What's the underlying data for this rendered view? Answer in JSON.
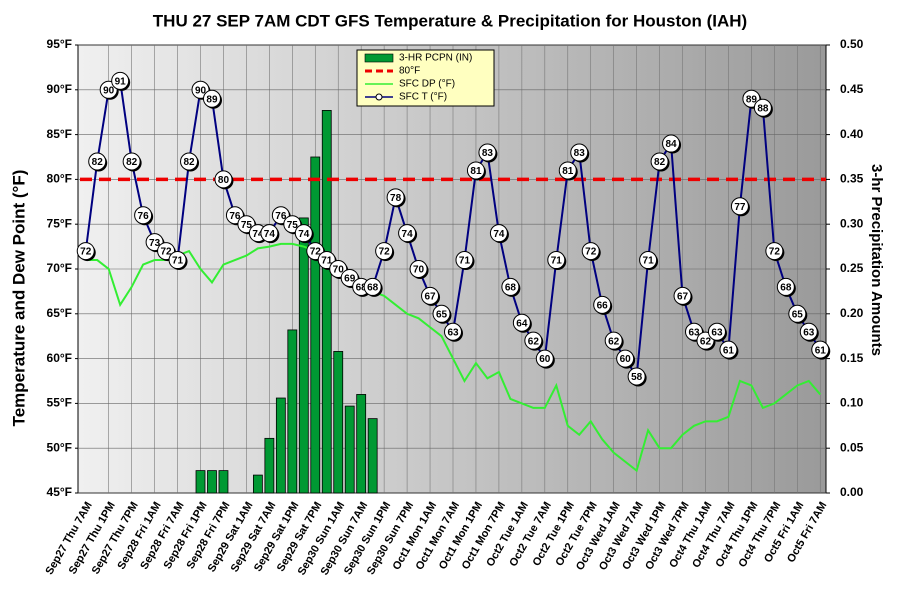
{
  "chart_data": {
    "type": "combo",
    "title": "THU 27 SEP 7AM CDT GFS Temperature & Precipitation for Houston (IAH)",
    "y_label": "Temperature and Dew Point (°F)",
    "y2_label": "3-hr Precipitation Amounts",
    "categories": [
      "Sep27 Thu 7AM",
      null,
      "Sep27 Thu 1PM",
      null,
      "Sep27 Thu 7PM",
      null,
      "Sep28 Fri 1AM",
      null,
      "Sep28 Fri 7AM",
      null,
      "Sep28 Fri 1PM",
      null,
      "Sep28 Fri 7PM",
      null,
      "Sep29 Sat 1AM",
      null,
      "Sep29 Sat 7AM",
      null,
      "Sep29 Sat 1PM",
      null,
      "Sep29 Sat 7PM",
      null,
      "Sep30 Sun 1AM",
      null,
      "Sep30 Sun 7AM",
      null,
      "Sep30 Sun 1PM",
      null,
      "Sep30 Sun 7PM",
      null,
      "Oct1 Mon 1AM",
      null,
      "Oct1 Mon 7AM",
      null,
      "Oct1 Mon 1PM",
      null,
      "Oct1 Mon 7PM",
      null,
      "Oct2 Tue 1AM",
      null,
      "Oct2 Tue 7AM",
      null,
      "Oct2 Tue 1PM",
      null,
      "Oct2 Tue 7PM",
      null,
      "Oct3 Wed 1AM",
      null,
      "Oct3 Wed 7AM",
      null,
      "Oct3 Wed 1PM",
      null,
      "Oct3 Wed 7PM",
      null,
      "Oct4 Thu 1AM",
      null,
      "Oct4 Thu 7AM",
      null,
      "Oct4 Thu 1PM",
      null,
      "Oct4 Thu 7PM",
      null,
      "Oct5 Fri 1AM",
      null,
      "Oct5 Fri 7AM"
    ],
    "series": [
      {
        "name": "3-HR PCPN  (IN)",
        "kind": "bar",
        "axis": "y2",
        "color": "#009933",
        "values": [
          null,
          null,
          null,
          null,
          null,
          null,
          null,
          null,
          null,
          null,
          0.025,
          0.025,
          0.025,
          null,
          null,
          0.02,
          0.061,
          0.106,
          0.182,
          0.307,
          0.375,
          0.427,
          0.158,
          0.097,
          0.11,
          0.083,
          null,
          null,
          null,
          null,
          null,
          null,
          null,
          null,
          null,
          null,
          null,
          null,
          null,
          null,
          null,
          null,
          null,
          null,
          null,
          null,
          null,
          null,
          null,
          null,
          null,
          null,
          null,
          null,
          null,
          null,
          null,
          null,
          null,
          null,
          null,
          null,
          null,
          null,
          null
        ]
      },
      {
        "name": "SFC DP (°F)",
        "kind": "line",
        "color": "#33ee33",
        "values": [
          71,
          71,
          70,
          66,
          68,
          70.5,
          71,
          71,
          71.5,
          72,
          70,
          68.5,
          70.5,
          71,
          71.5,
          72.3,
          72.5,
          72.8,
          72.8,
          72.5,
          72,
          71,
          70,
          69,
          68,
          67.5,
          67,
          66,
          65,
          64.5,
          63.5,
          62.5,
          60,
          57.5,
          59.5,
          57.8,
          58.5,
          55.5,
          55,
          54.5,
          54.5,
          57,
          52.5,
          51.5,
          53,
          51,
          49.5,
          48.5,
          47.5,
          52,
          50,
          50,
          51.5,
          52.5,
          53,
          53,
          53.5,
          57.5,
          57,
          54.5,
          55,
          56,
          57,
          57.5,
          56
        ]
      },
      {
        "name": "SFC T (°F)",
        "kind": "labeled-line",
        "color": "#000080",
        "values": [
          72,
          82,
          90,
          91,
          82,
          76,
          73,
          72,
          71,
          82,
          90,
          89,
          80,
          76,
          75,
          74,
          74,
          76,
          75,
          74,
          72,
          71,
          70,
          69,
          68,
          68,
          72,
          78,
          74,
          70,
          67,
          65,
          63,
          71,
          81,
          83,
          74,
          68,
          64,
          62,
          60,
          71,
          81,
          83,
          72,
          66,
          62,
          60,
          58,
          71,
          82,
          84,
          67,
          63,
          62,
          63,
          61,
          77,
          89,
          88,
          72,
          68,
          65,
          63,
          61
        ]
      }
    ],
    "reference_line": {
      "name": "80°F",
      "value": 80,
      "color": "#ee0000"
    },
    "ylim": [
      45,
      95
    ],
    "yticks": [
      {
        "value": 45,
        "label": "45°F"
      },
      {
        "value": 50,
        "label": "50°F"
      },
      {
        "value": 55,
        "label": "55°F"
      },
      {
        "value": 60,
        "label": "60°F"
      },
      {
        "value": 65,
        "label": "65°F"
      },
      {
        "value": 70,
        "label": "70°F"
      },
      {
        "value": 75,
        "label": "75°F"
      },
      {
        "value": 80,
        "label": "80°F"
      },
      {
        "value": 85,
        "label": "85°F"
      },
      {
        "value": 90,
        "label": "90°F"
      },
      {
        "value": 95,
        "label": "95°F"
      }
    ],
    "y2lim": [
      0,
      0.5
    ],
    "y2ticks": [
      {
        "value": 0,
        "label": "0.00"
      },
      {
        "value": 0.05,
        "label": "0.05"
      },
      {
        "value": 0.1,
        "label": "0.10"
      },
      {
        "value": 0.15,
        "label": "0.15"
      },
      {
        "value": 0.2,
        "label": "0.20"
      },
      {
        "value": 0.25,
        "label": "0.25"
      },
      {
        "value": 0.3,
        "label": "0.30"
      },
      {
        "value": 0.35,
        "label": "0.35"
      },
      {
        "value": 0.4,
        "label": "0.40"
      },
      {
        "value": 0.45,
        "label": "0.45"
      },
      {
        "value": 0.5,
        "label": "0.50"
      }
    ],
    "grid": true,
    "legend": "top-center"
  }
}
